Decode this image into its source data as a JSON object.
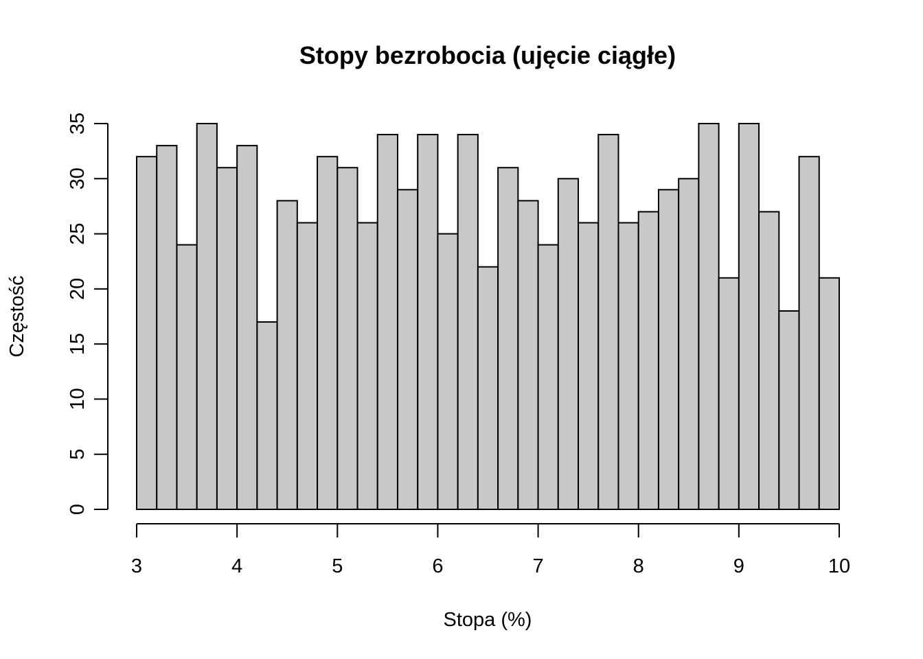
{
  "chart_data": {
    "type": "bar",
    "title": "Stopy bezrobocia (ujęcie ciągłe)",
    "xlabel": "Stopa (%)",
    "ylabel": "Częstość",
    "xlim": [
      3,
      10
    ],
    "ylim": [
      0,
      35
    ],
    "bin_width": 0.2,
    "bin_start": 3.0,
    "x_ticks": [
      "3",
      "4",
      "5",
      "6",
      "7",
      "8",
      "9",
      "10"
    ],
    "y_ticks": [
      "0",
      "5",
      "10",
      "15",
      "20",
      "25",
      "30",
      "35"
    ],
    "values": [
      32,
      33,
      24,
      35,
      31,
      33,
      17,
      28,
      26,
      32,
      31,
      26,
      34,
      29,
      34,
      25,
      34,
      22,
      31,
      28,
      24,
      30,
      26,
      34,
      26,
      27,
      29,
      30,
      35,
      21,
      35,
      27,
      18,
      32,
      21
    ],
    "bar_fill": "#c8c8c8",
    "bar_stroke": "#000000",
    "grid": false,
    "legend": "none"
  }
}
